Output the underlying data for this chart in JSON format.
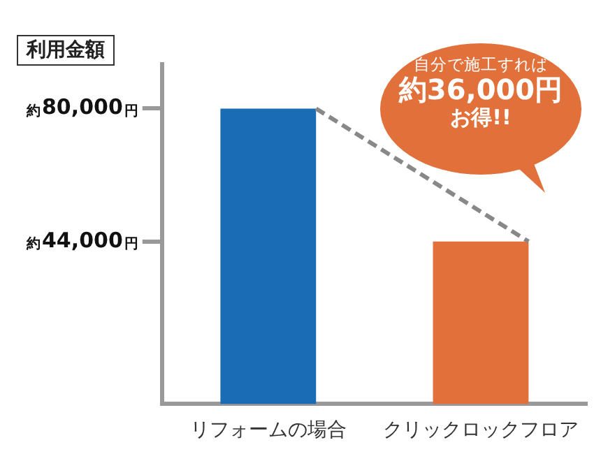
{
  "chart_data": {
    "type": "bar",
    "ylabel": "利用金額",
    "categories": [
      "リフォームの場合",
      "クリックロックフロア"
    ],
    "values": [
      80000,
      44000
    ],
    "colors": [
      "#1a6db5",
      "#e2703a"
    ],
    "ylim": [
      0,
      92000
    ],
    "yticks": [
      {
        "value": 44000,
        "label": "44,000"
      },
      {
        "value": 80000,
        "label": "80,000"
      }
    ],
    "grid": false,
    "legend": false,
    "annotations": [
      "自分で施工すれば",
      "約36,000円",
      "お得!!",
      "約",
      "円",
      "約",
      "円"
    ]
  }
}
